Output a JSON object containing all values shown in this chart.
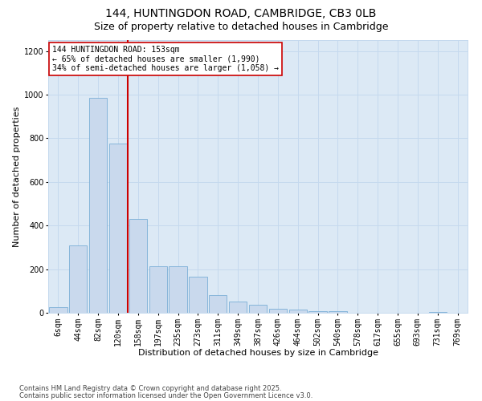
{
  "title": "144, HUNTINGDON ROAD, CAMBRIDGE, CB3 0LB",
  "subtitle": "Size of property relative to detached houses in Cambridge",
  "xlabel": "Distribution of detached houses by size in Cambridge",
  "ylabel": "Number of detached properties",
  "categories": [
    "6sqm",
    "44sqm",
    "82sqm",
    "120sqm",
    "158sqm",
    "197sqm",
    "235sqm",
    "273sqm",
    "311sqm",
    "349sqm",
    "387sqm",
    "426sqm",
    "464sqm",
    "502sqm",
    "540sqm",
    "578sqm",
    "617sqm",
    "655sqm",
    "693sqm",
    "731sqm",
    "769sqm"
  ],
  "values": [
    25,
    310,
    985,
    775,
    430,
    215,
    215,
    165,
    80,
    50,
    35,
    20,
    13,
    8,
    8,
    0,
    0,
    0,
    0,
    5,
    0
  ],
  "bar_color": "#c9d9ed",
  "bar_edge_color": "#7aaed6",
  "grid_color": "#c5d9ee",
  "plot_bg_color": "#dce9f5",
  "fig_bg_color": "#ffffff",
  "vline_color": "#cc0000",
  "annotation_text": "144 HUNTINGDON ROAD: 153sqm\n← 65% of detached houses are smaller (1,990)\n34% of semi-detached houses are larger (1,058) →",
  "annotation_box_color": "#ffffff",
  "annotation_box_edge": "#cc0000",
  "ylim": [
    0,
    1250
  ],
  "yticks": [
    0,
    200,
    400,
    600,
    800,
    1000,
    1200
  ],
  "footer1": "Contains HM Land Registry data © Crown copyright and database right 2025.",
  "footer2": "Contains public sector information licensed under the Open Government Licence v3.0.",
  "title_fontsize": 10,
  "subtitle_fontsize": 9,
  "xlabel_fontsize": 8,
  "ylabel_fontsize": 8,
  "tick_fontsize": 7,
  "annotation_fontsize": 7,
  "footer_fontsize": 6
}
